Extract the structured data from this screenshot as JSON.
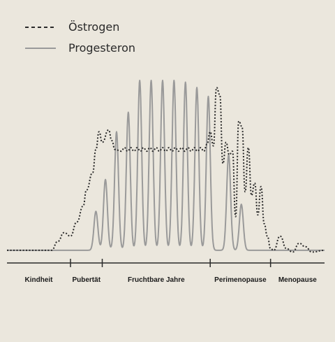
{
  "chart_data": {
    "type": "line",
    "title": "",
    "xlabel": "",
    "ylabel": "",
    "grid": false,
    "legend_position": "top-left",
    "x_range": [
      0,
      100
    ],
    "y_range": [
      0,
      100
    ],
    "categories": [
      "Kindheit",
      "Pubertät",
      "Fruchtbare Jahre",
      "Perimenopause",
      "Menopause"
    ],
    "phase_boundaries": [
      20,
      30,
      64,
      83
    ],
    "series": [
      {
        "name": "Östrogen",
        "style": "dotted",
        "color": "#2a2a2a",
        "values": [
          [
            0,
            4
          ],
          [
            14,
            4
          ],
          [
            16,
            9
          ],
          [
            18,
            14
          ],
          [
            20,
            12
          ],
          [
            22,
            20
          ],
          [
            24,
            29
          ],
          [
            25,
            38
          ],
          [
            27,
            48
          ],
          [
            28,
            61
          ],
          [
            29,
            71
          ],
          [
            30,
            65
          ],
          [
            32,
            72
          ],
          [
            33,
            66
          ],
          [
            34,
            61
          ],
          [
            36,
            60
          ],
          [
            37,
            62
          ],
          [
            38,
            60
          ],
          [
            39,
            62
          ],
          [
            40,
            60
          ],
          [
            41,
            62
          ],
          [
            42,
            60
          ],
          [
            43,
            62
          ],
          [
            44,
            60
          ],
          [
            45,
            62
          ],
          [
            46,
            60
          ],
          [
            47,
            62
          ],
          [
            48,
            60
          ],
          [
            49,
            62
          ],
          [
            50,
            60
          ],
          [
            51,
            62
          ],
          [
            52,
            60
          ],
          [
            53,
            62
          ],
          [
            54,
            60
          ],
          [
            55,
            62
          ],
          [
            56,
            60
          ],
          [
            57,
            62
          ],
          [
            58,
            60
          ],
          [
            59,
            62
          ],
          [
            60,
            60
          ],
          [
            61,
            62
          ],
          [
            62,
            60
          ],
          [
            63,
            64
          ],
          [
            64,
            71
          ],
          [
            65,
            63
          ],
          [
            66,
            96
          ],
          [
            67,
            92
          ],
          [
            68,
            53
          ],
          [
            69,
            65
          ],
          [
            70,
            58
          ],
          [
            71,
            60
          ],
          [
            72,
            23
          ],
          [
            73,
            77
          ],
          [
            74,
            74
          ],
          [
            75,
            37
          ],
          [
            76,
            62
          ],
          [
            77,
            35
          ],
          [
            78,
            42
          ],
          [
            79,
            24
          ],
          [
            80,
            40
          ],
          [
            81,
            19
          ],
          [
            82,
            12
          ],
          [
            83,
            5
          ],
          [
            84,
            4
          ],
          [
            86,
            12
          ],
          [
            88,
            5
          ],
          [
            90,
            3
          ],
          [
            92,
            8
          ],
          [
            94,
            6
          ],
          [
            96,
            3
          ],
          [
            100,
            4
          ]
        ]
      },
      {
        "name": "Progesteron",
        "style": "solid",
        "color": "#9a9a9a",
        "peaks": [
          {
            "x": 28,
            "y": 26
          },
          {
            "x": 31,
            "y": 44
          },
          {
            "x": 34.5,
            "y": 71
          },
          {
            "x": 38.2,
            "y": 82
          },
          {
            "x": 41.8,
            "y": 100
          },
          {
            "x": 45.4,
            "y": 100
          },
          {
            "x": 49.0,
            "y": 100
          },
          {
            "x": 52.6,
            "y": 100
          },
          {
            "x": 56.2,
            "y": 99
          },
          {
            "x": 59.8,
            "y": 96
          },
          {
            "x": 63.4,
            "y": 91
          },
          {
            "x": 69.8,
            "y": 58
          },
          {
            "x": 73.8,
            "y": 30
          }
        ],
        "baseline": 4
      }
    ]
  }
}
